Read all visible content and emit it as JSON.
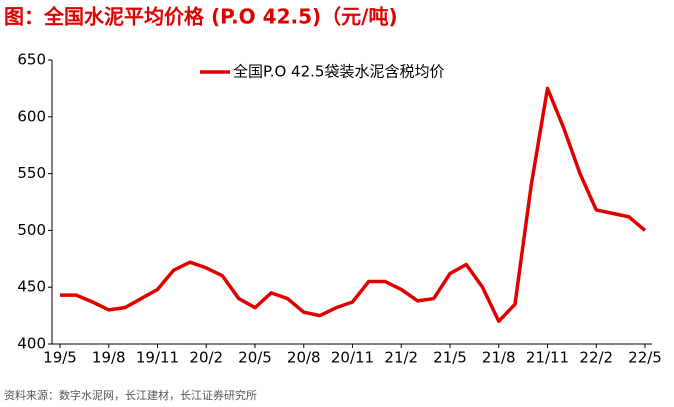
{
  "chart_data": {
    "type": "line",
    "title": "图：全国水泥平均价格 (P.O 42.5)（元/吨)",
    "source": "资料来源：数字水泥网，长江建材，长江证券研究所",
    "categories": [
      "19/5",
      null,
      null,
      "19/8",
      null,
      null,
      "19/11",
      null,
      null,
      "20/2",
      null,
      null,
      "20/5",
      null,
      null,
      "20/8",
      null,
      null,
      "20/11",
      null,
      null,
      "21/2",
      null,
      null,
      "21/5",
      null,
      null,
      "21/8",
      null,
      null,
      "21/11",
      null,
      null,
      "22/2",
      null,
      null,
      "22/5"
    ],
    "series": [
      {
        "name": "全国P.O 42.5袋装水泥含税均价",
        "color": "#e00000",
        "values": [
          443,
          443,
          437,
          430,
          432,
          440,
          448,
          465,
          472,
          467,
          460,
          440,
          432,
          445,
          440,
          428,
          425,
          432,
          437,
          455,
          455,
          448,
          438,
          440,
          462,
          470,
          450,
          420,
          435,
          540,
          625,
          590,
          550,
          518,
          515,
          512,
          500
        ]
      }
    ],
    "ylim": [
      400,
      650
    ],
    "yticks": [
      400,
      450,
      500,
      550,
      600,
      650
    ],
    "legend": "top"
  }
}
